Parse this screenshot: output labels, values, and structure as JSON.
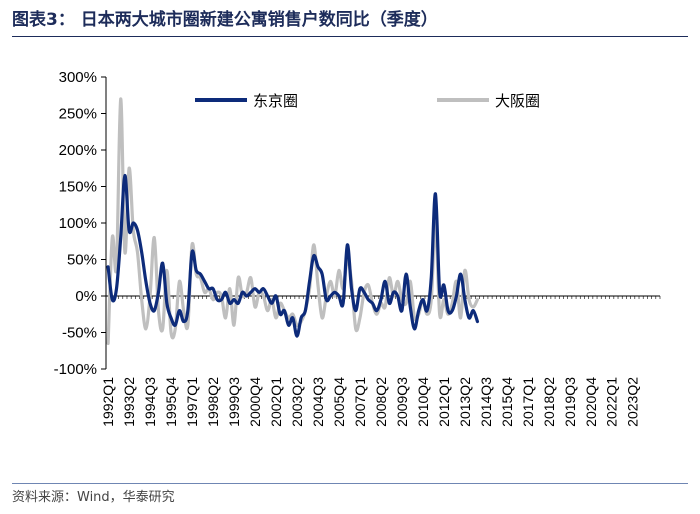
{
  "title": "图表3： 日本两大城市圈新建公寓销售户数同比（季度）",
  "source": "资料来源：Wind，华泰研究",
  "colors": {
    "tokyo": "#0d2b7a",
    "osaka": "#bfbfbf",
    "title": "#1d2c5a",
    "axis": "#000000"
  },
  "chart_data": {
    "type": "line",
    "title": "",
    "xlabel": "",
    "ylabel": "",
    "ylim": [
      -100,
      300
    ],
    "y_ticks": [
      -100,
      -50,
      0,
      50,
      100,
      150,
      200,
      250,
      300
    ],
    "y_tick_labels": [
      "-100%",
      "-50%",
      "0%",
      "50%",
      "100%",
      "150%",
      "200%",
      "250%",
      "300%"
    ],
    "y_unit": "%",
    "x_start": "1992Q1",
    "x_end": "2024Q4",
    "x_tick_labels": [
      "1992Q1",
      "1993Q2",
      "1994Q3",
      "1995Q4",
      "1997Q1",
      "1998Q2",
      "1999Q3",
      "2000Q4",
      "2002Q1",
      "2003Q2",
      "2004Q3",
      "2005Q4",
      "2007Q1",
      "2008Q2",
      "2009Q3",
      "2010Q4",
      "2012Q1",
      "2013Q2",
      "2014Q3",
      "2015Q4",
      "2017Q1",
      "2018Q2",
      "2019Q3",
      "2020Q4",
      "2022Q1",
      "2023Q2"
    ],
    "legend_position": "top",
    "grid": false,
    "series": [
      {
        "name": "东京圈",
        "values": [
          40,
          -5,
          10,
          80,
          165,
          90,
          100,
          90,
          60,
          20,
          -10,
          -20,
          5,
          45,
          -10,
          -30,
          -40,
          -20,
          -35,
          -20,
          60,
          35,
          30,
          20,
          10,
          10,
          -5,
          -5,
          5,
          -10,
          -5,
          -10,
          5,
          0,
          5,
          10,
          5,
          10,
          0,
          -10,
          0,
          -25,
          -20,
          -40,
          -30,
          -55,
          -30,
          -20,
          20,
          55,
          40,
          30,
          -5,
          0,
          5,
          0,
          -10,
          70,
          10,
          -20,
          10,
          5,
          -5,
          -10,
          -20,
          -5,
          20,
          -10,
          5,
          0,
          -20,
          30,
          -15,
          -45,
          -20,
          -5,
          -20,
          25,
          140,
          5,
          15,
          -20,
          -20,
          0,
          30,
          -5,
          -30,
          -20,
          -35
        ],
        "color": "#0d2b7a"
      },
      {
        "name": "大阪圈",
        "values": [
          -65,
          80,
          40,
          270,
          60,
          175,
          90,
          60,
          -5,
          -45,
          0,
          80,
          -20,
          -45,
          35,
          -50,
          -45,
          20,
          -20,
          -40,
          70,
          30,
          25,
          5,
          10,
          -5,
          5,
          0,
          -30,
          10,
          -40,
          25,
          0,
          5,
          25,
          -15,
          5,
          0,
          -20,
          -5,
          -30,
          -10,
          -20,
          -30,
          -25,
          -40,
          -35,
          -20,
          10,
          70,
          15,
          -30,
          0,
          20,
          0,
          35,
          10,
          50,
          20,
          -45,
          -30,
          5,
          15,
          -10,
          -25,
          -10,
          -15,
          25,
          0,
          20,
          -5,
          -10,
          20,
          -30,
          -25,
          -5,
          -25,
          -5,
          100,
          -25,
          -5,
          -25,
          -10,
          20,
          -30,
          35,
          -5,
          -15,
          -5
        ],
        "color": "#bfbfbf"
      }
    ]
  }
}
